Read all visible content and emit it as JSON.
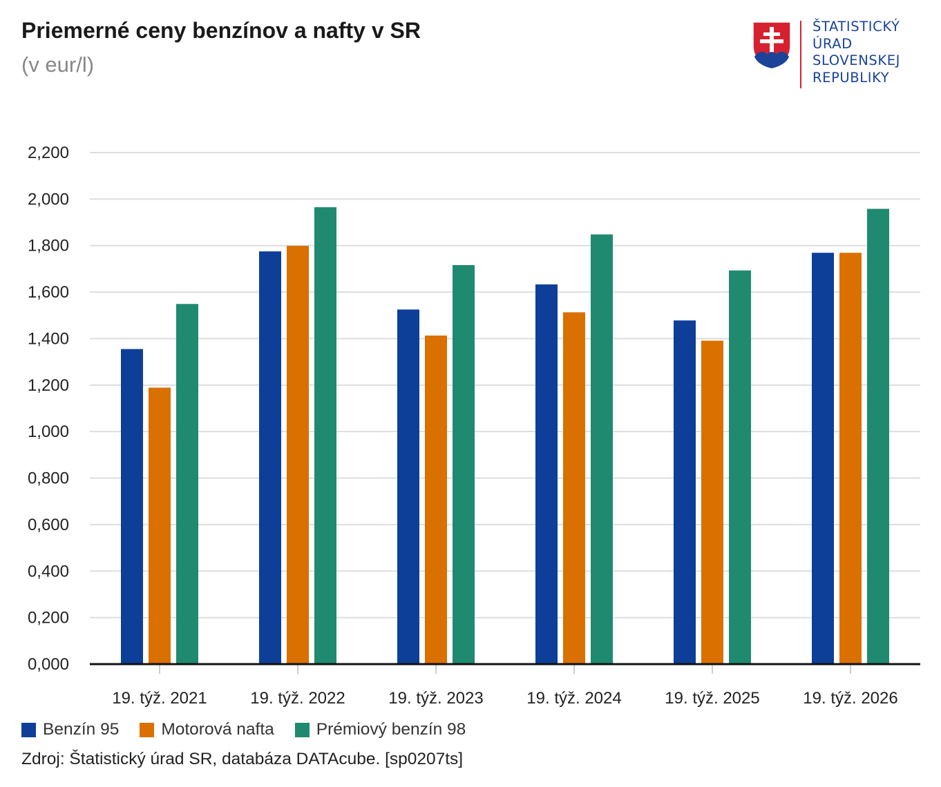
{
  "header": {
    "title": "Priemerné ceny benzínov a nafty v SR",
    "subtitle": "(v eur/l)"
  },
  "logo": {
    "icon": "slovak-coat-of-arms-icon",
    "lines": [
      "ŠTATISTICKÝ",
      "ÚRAD",
      "SLOVENSKEJ",
      "REPUBLIKY"
    ],
    "text_color": "#1b4499",
    "divider_color": "#d62030"
  },
  "chart_data": {
    "type": "bar",
    "title": "Priemerné ceny benzínov a nafty v SR",
    "subtitle": "(v eur/l)",
    "categories": [
      "19. týž. 2021",
      "19. týž. 2022",
      "19. týž. 2023",
      "19. týž. 2024",
      "19. týž. 2025",
      "19. týž. 2026"
    ],
    "series": [
      {
        "name": "Benzín 95",
        "color": "#0d3f99",
        "values": [
          1.355,
          1.775,
          1.525,
          1.633,
          1.478,
          1.769
        ]
      },
      {
        "name": "Motorová nafta",
        "color": "#d97000",
        "values": [
          1.189,
          1.799,
          1.413,
          1.513,
          1.391,
          1.769
        ]
      },
      {
        "name": "Prémiový benzín 98",
        "color": "#1f8a70",
        "values": [
          1.549,
          1.965,
          1.716,
          1.848,
          1.693,
          1.958
        ]
      }
    ],
    "ylim": [
      0,
      2.2
    ],
    "yticks": [
      "0,000",
      "0,200",
      "0,400",
      "0,600",
      "0,800",
      "1,000",
      "1,200",
      "1,400",
      "1,600",
      "1,800",
      "2,000",
      "2,200"
    ],
    "grid": true,
    "legend_position": "bottom-left"
  },
  "source": "Zdroj: Štatistický úrad SR, databáza DATAcube. [sp0207ts]"
}
